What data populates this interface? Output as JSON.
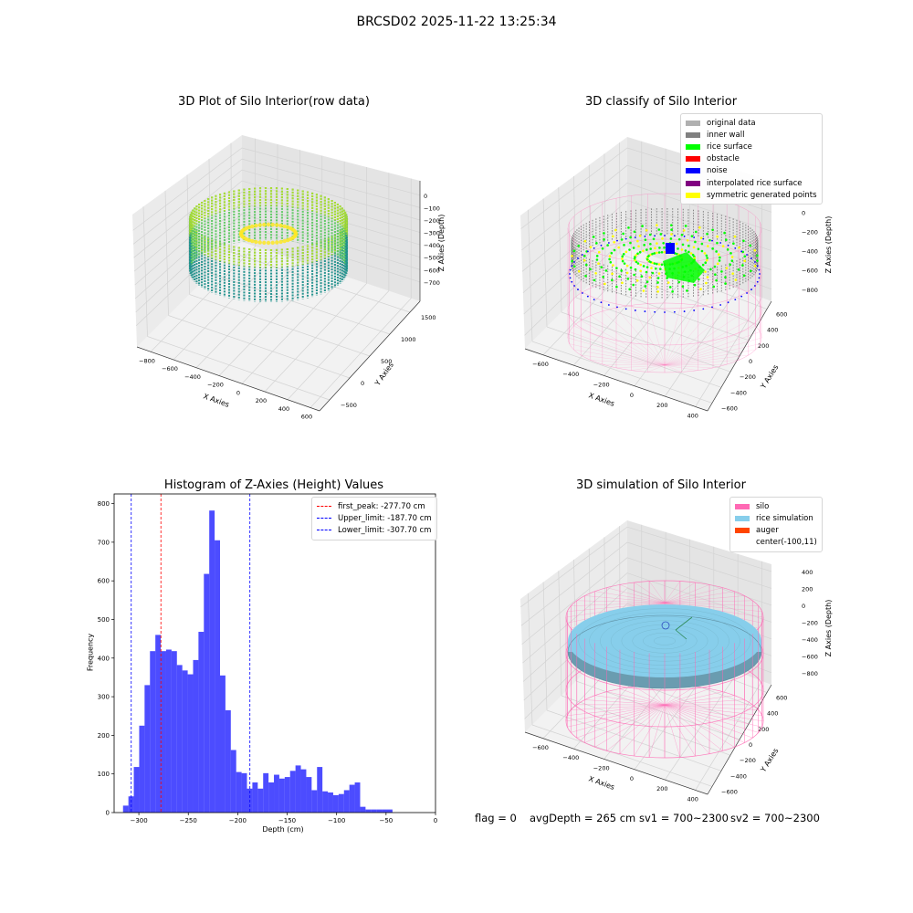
{
  "figure": {
    "suptitle": "BRCSD02 2025-11-22 13:25:34",
    "status": {
      "flag": "flag = 0",
      "avg_depth": "avgDepth = 265 cm",
      "sv1": "sv1 = 700~2300",
      "sv2": "sv2 = 700~2300"
    }
  },
  "panel_raw": {
    "title": "3D Plot of Silo Interior(row data)",
    "xlabel": "X Axies",
    "ylabel": "Y Axies",
    "zlabel": "Z Axies (Depth)",
    "xticks": [
      "−800",
      "−600",
      "−400",
      "−200",
      "0",
      "200",
      "400",
      "600"
    ],
    "yticks": [
      "1500",
      "1000",
      "500",
      "0",
      "−500"
    ],
    "zticks": [
      "0",
      "−100",
      "−200",
      "−300",
      "−400",
      "−500",
      "−600",
      "−700"
    ],
    "colors": {
      "top": "#aadc32",
      "mid": "#5ec962",
      "low": "#21918c",
      "peak": "#fde725"
    }
  },
  "panel_classify": {
    "title": "3D classify of Silo Interior",
    "xlabel": "X Axies",
    "ylabel": "Y Axies",
    "zlabel": "Z Axies (Depth)",
    "xticks": [
      "−600",
      "−400",
      "−200",
      "0",
      "200",
      "400"
    ],
    "yticks": [
      "600",
      "400",
      "200",
      "0",
      "−200",
      "−400",
      "−600"
    ],
    "zticks": [
      "200",
      "0",
      "−200",
      "−400",
      "−600",
      "−800"
    ],
    "legend": [
      {
        "label": "original data",
        "color": "#b0b0b0"
      },
      {
        "label": "inner wall",
        "color": "#808080"
      },
      {
        "label": "rice surface",
        "color": "#00ff00"
      },
      {
        "label": "obstacle",
        "color": "#ff0000"
      },
      {
        "label": "noise",
        "color": "#0000ff"
      },
      {
        "label": "interpolated rice surface",
        "color": "#800080"
      },
      {
        "label": "symmetric generated points",
        "color": "#ffff00"
      }
    ],
    "wire_color": "#ff69b4"
  },
  "panel_hist": {
    "title": "Histogram of Z-Axies (Height) Values",
    "xlabel": "Depth (cm)",
    "ylabel": "Frequency",
    "legend": [
      {
        "label": "first_peak: -277.70 cm",
        "color": "#ff0000"
      },
      {
        "label": "Upper_limit: -187.70 cm",
        "color": "#0000ff"
      },
      {
        "label": "Lower_limit: -307.70 cm",
        "color": "#0000ff"
      }
    ]
  },
  "panel_sim": {
    "title": "3D simulation of Silo Interior",
    "xlabel": "X Axies",
    "ylabel": "Y Axies",
    "zlabel": "Z Axies (Depth)",
    "xticks": [
      "−600",
      "−400",
      "−200",
      "0",
      "200",
      "400"
    ],
    "yticks": [
      "600",
      "400",
      "200",
      "0",
      "−200",
      "−400",
      "−600"
    ],
    "zticks": [
      "400",
      "200",
      "0",
      "−200",
      "−400",
      "−600",
      "−800"
    ],
    "legend": [
      {
        "label": "silo",
        "color": "#ff69b4"
      },
      {
        "label": "rice simulation",
        "color": "#87ceeb"
      },
      {
        "label": "auger",
        "color": "#ff4500"
      },
      {
        "label": "center(-100,11)",
        "color": ""
      }
    ]
  },
  "chart_data": [
    {
      "type": "bar",
      "title": "Histogram of Z-Axies (Height) Values",
      "xlabel": "Depth (cm)",
      "ylabel": "Frequency",
      "bin_start": -316,
      "bin_width": 5.45,
      "values": [
        18,
        42,
        118,
        225,
        330,
        418,
        460,
        418,
        422,
        418,
        382,
        368,
        358,
        395,
        468,
        618,
        782,
        705,
        355,
        265,
        162,
        105,
        102,
        62,
        78,
        62,
        102,
        78,
        98,
        88,
        92,
        108,
        122,
        112,
        92,
        58,
        118,
        55,
        52,
        45,
        48,
        58,
        72,
        78,
        15,
        8,
        8,
        8,
        8,
        8
      ],
      "color": "#0000ff",
      "xlim": [
        -325,
        0
      ],
      "ylim": [
        0,
        825
      ],
      "xticks": [
        -300,
        -250,
        -200,
        -150,
        -100,
        -50,
        0
      ],
      "yticks": [
        0,
        100,
        200,
        300,
        400,
        500,
        600,
        700,
        800
      ],
      "vlines": [
        {
          "label": "first_peak: -277.70 cm",
          "x": -277.7,
          "color": "#ff0000",
          "style": "dashed"
        },
        {
          "label": "Upper_limit: -187.70 cm",
          "x": -187.7,
          "color": "#0000ff",
          "style": "dashed"
        },
        {
          "label": "Lower_limit: -307.70 cm",
          "x": -307.7,
          "color": "#0000ff",
          "style": "dashed"
        }
      ],
      "legend_position": "top-right",
      "grid": false
    }
  ]
}
